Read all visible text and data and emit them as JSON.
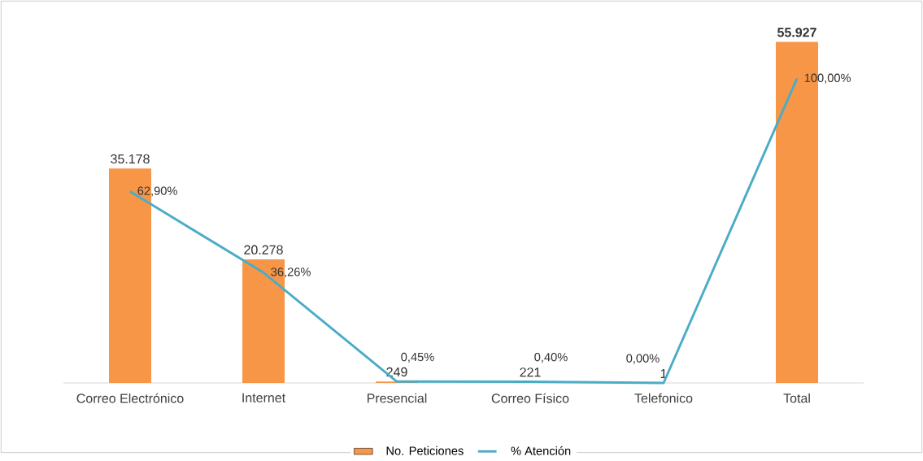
{
  "chart_data": {
    "type": "bar",
    "categories": [
      "Correo Electrónico",
      "Internet",
      "Presencial",
      "Correo Físico",
      "Telefonico",
      "Total"
    ],
    "series": [
      {
        "name": "No. Peticiones",
        "color": "#f79646",
        "values": [
          35178,
          20278,
          249,
          221,
          1,
          55927
        ],
        "value_labels": [
          "35.178",
          "20.278",
          "249",
          "221",
          "1",
          "**55.927**"
        ]
      },
      {
        "name": "% Atención",
        "type": "line",
        "axis": "y2",
        "color": "#4bacc6",
        "values": [
          62.9,
          36.26,
          0.45,
          0.4,
          0.0,
          100.0
        ],
        "value_labels": [
          "62,90%",
          "36,26%",
          "0,45%",
          "0,40%",
          "0,00%",
          "100,00%"
        ]
      }
    ],
    "legend": "bottom",
    "marker": "none"
  }
}
